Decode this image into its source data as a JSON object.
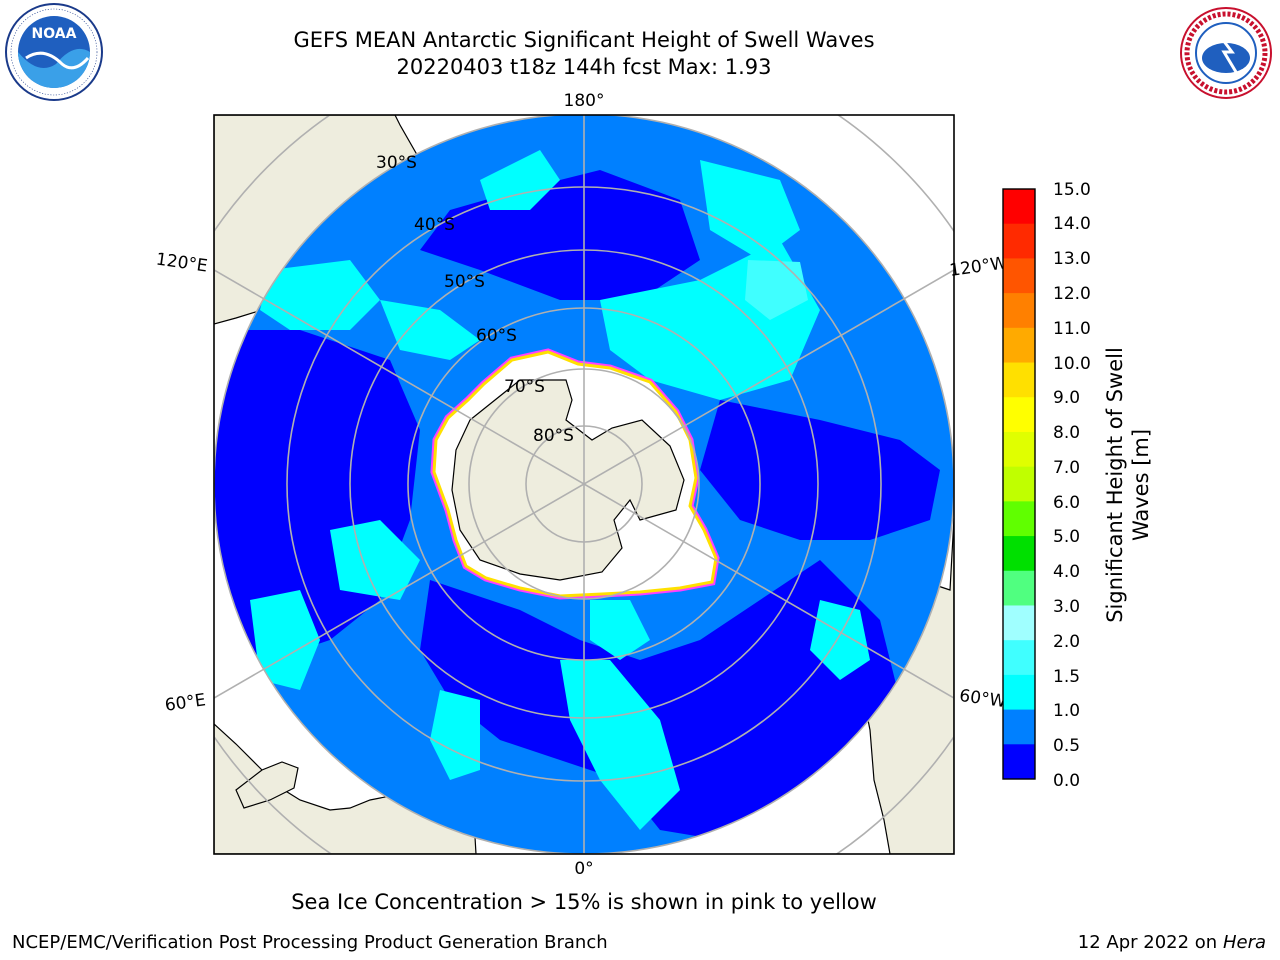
{
  "header": {
    "title_line1": "GEFS MEAN Antarctic Significant Height of Swell Waves",
    "title_line2": "20220403 t18z 144h fcst   Max: 1.93"
  },
  "logos": {
    "left": {
      "name": "NOAA",
      "ring_text": "NATIONAL OCEANIC AND ATMOSPHERIC ADMINISTRATION · U.S. DEPARTMENT OF COMMERCE"
    },
    "right": {
      "name": "NATIONAL WEATHER SERVICE"
    }
  },
  "map": {
    "projection": "south-polar-stereographic",
    "longitude_labels": {
      "top": "180°",
      "bottom": "0°",
      "upper_left": "120°E",
      "upper_right": "120°W",
      "lower_left": "60°E",
      "lower_right": "60°W"
    },
    "latitude_labels": [
      "30°S",
      "40°S",
      "50°S",
      "60°S",
      "70°S",
      "80°S"
    ],
    "colors": {
      "land": "#eeedde",
      "ocean_0_05": "#0000ff",
      "ocean_05_10": "#0080ff",
      "ocean_10_15": "#00ffff",
      "ocean_15_20": "#40ffff",
      "ocean_20_30": "#a0ffff",
      "sea_ice_edge": [
        "#ff40ff",
        "#ffff00"
      ],
      "gridline": "#b0b0b0"
    }
  },
  "colorbar": {
    "label": "Significant Height of Swell Waves [m]",
    "label_line1": "Significant Height of Swell",
    "label_line2": "Waves [m]",
    "ticks": [
      "15.0",
      "14.0",
      "13.0",
      "12.0",
      "11.0",
      "10.0",
      "9.0",
      "8.0",
      "7.0",
      "6.0",
      "5.0",
      "4.0",
      "3.0",
      "2.0",
      "1.5",
      "1.0",
      "0.5",
      "0.0"
    ],
    "bands": [
      {
        "from": "14.0",
        "to": "15.0",
        "color": "#ff0000"
      },
      {
        "from": "13.0",
        "to": "14.0",
        "color": "#ff2a00"
      },
      {
        "from": "12.0",
        "to": "13.0",
        "color": "#ff5500"
      },
      {
        "from": "11.0",
        "to": "12.0",
        "color": "#ff8000"
      },
      {
        "from": "10.0",
        "to": "11.0",
        "color": "#ffaa00"
      },
      {
        "from": "9.0",
        "to": "10.0",
        "color": "#ffe000"
      },
      {
        "from": "8.0",
        "to": "9.0",
        "color": "#ffff00"
      },
      {
        "from": "7.0",
        "to": "8.0",
        "color": "#e0ff00"
      },
      {
        "from": "6.0",
        "to": "7.0",
        "color": "#c0ff00"
      },
      {
        "from": "5.0",
        "to": "6.0",
        "color": "#60ff00"
      },
      {
        "from": "4.0",
        "to": "5.0",
        "color": "#00e000"
      },
      {
        "from": "3.0",
        "to": "4.0",
        "color": "#50ff80"
      },
      {
        "from": "2.0",
        "to": "3.0",
        "color": "#a0ffff"
      },
      {
        "from": "1.5",
        "to": "2.0",
        "color": "#40ffff"
      },
      {
        "from": "1.0",
        "to": "1.5",
        "color": "#00ffff"
      },
      {
        "from": "0.5",
        "to": "1.0",
        "color": "#0080ff"
      },
      {
        "from": "0.0",
        "to": "0.5",
        "color": "#0000ff"
      }
    ]
  },
  "caption": "Sea Ice Concentration > 15% is shown in pink to yellow",
  "footer": {
    "left": "NCEP/EMC/Verification Post Processing Product Generation Branch",
    "right_prefix": "12 Apr 2022 on ",
    "right_host": "Hera"
  }
}
